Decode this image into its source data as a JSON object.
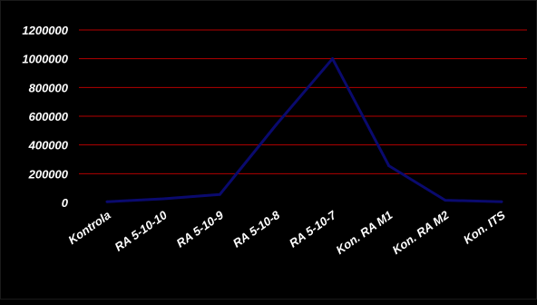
{
  "chart_data": {
    "type": "line",
    "categories": [
      "Kontrola",
      "RA 5-10-10",
      "RA 5-10-9",
      "RA 5-10-8",
      "RA 5-10-7",
      "Kon. RA M1",
      "Kon. RA M2",
      "Kon. ITS"
    ],
    "series": [
      {
        "values": [
          5000,
          25000,
          55000,
          540000,
          1000000,
          255000,
          15000,
          5000
        ],
        "color": "#0a0a6e"
      }
    ],
    "ylim": [
      0,
      1200000
    ],
    "yticks": [
      0,
      200000,
      400000,
      600000,
      800000,
      1000000,
      1200000
    ],
    "ytick_labels": [
      "0",
      "200000",
      "400000",
      "600000",
      "800000",
      "1000000",
      "1200000"
    ],
    "grid": true,
    "grid_color": "#b30000",
    "background": "#000000",
    "text_color": "#ffffff",
    "legend": "none"
  }
}
